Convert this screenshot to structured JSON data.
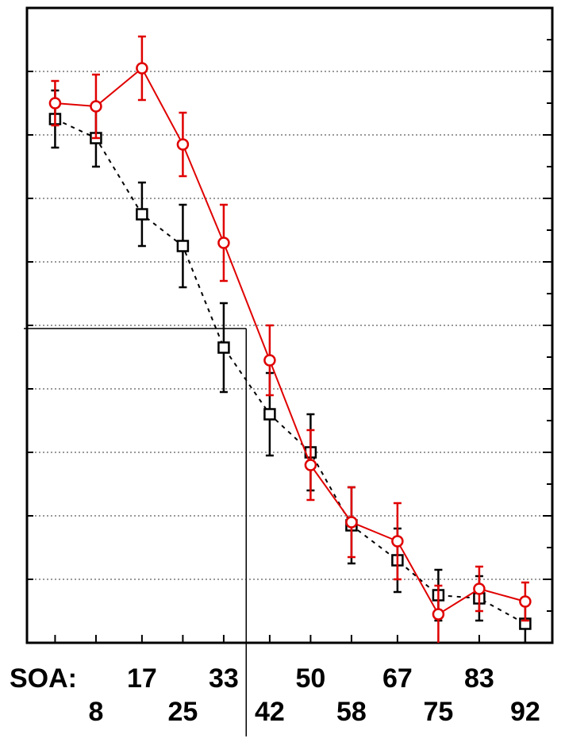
{
  "chart_data": {
    "type": "line",
    "title": "",
    "xlabel": "SOA:",
    "ylabel": "",
    "x": [
      0,
      8,
      17,
      25,
      33,
      42,
      50,
      58,
      67,
      75,
      83,
      92
    ],
    "x_tick_labels_row1": [
      "17",
      "33",
      "50",
      "67",
      "83"
    ],
    "x_tick_labels_row2": [
      "8",
      "25",
      "42",
      "58",
      "75",
      "92"
    ],
    "xlim": [
      -5.5,
      97.3
    ],
    "ylim": [
      0,
      10
    ],
    "y_major_ticks": [
      1,
      2,
      3,
      4,
      5,
      6,
      7,
      8,
      9
    ],
    "y_tick_labels_shown": false,
    "grid": "horizontal-dotted",
    "legend": "none",
    "reference_lines": {
      "horizontal_y": 4.95,
      "vertical_x": 37.4
    },
    "series": [
      {
        "color": "#e00000",
        "marker": "circle",
        "line": "solid",
        "values": [
          8.5,
          8.45,
          9.05,
          7.85,
          6.3,
          4.45,
          2.8,
          1.9,
          1.6,
          0.45,
          0.85,
          0.65
        ],
        "err_low": [
          0.35,
          0.5,
          0.5,
          0.5,
          0.6,
          0.55,
          0.55,
          0.55,
          0.6,
          0.45,
          0.35,
          0.3
        ],
        "err_high": [
          0.35,
          0.5,
          0.5,
          0.5,
          0.6,
          0.55,
          0.55,
          0.55,
          0.6,
          0.45,
          0.35,
          0.3
        ]
      },
      {
        "color": "#000000",
        "marker": "square",
        "line": "dashed",
        "values": [
          8.25,
          7.95,
          6.75,
          6.25,
          4.65,
          3.6,
          3.0,
          1.85,
          1.3,
          0.75,
          0.7,
          0.3
        ],
        "err_low": [
          0.45,
          0.45,
          0.5,
          0.65,
          0.7,
          0.65,
          0.6,
          0.6,
          0.5,
          0.4,
          0.35,
          0.3
        ],
        "err_high": [
          0.45,
          0.45,
          0.5,
          0.65,
          0.7,
          0.65,
          0.6,
          0.6,
          0.5,
          0.4,
          0.35,
          0.3
        ]
      }
    ]
  }
}
